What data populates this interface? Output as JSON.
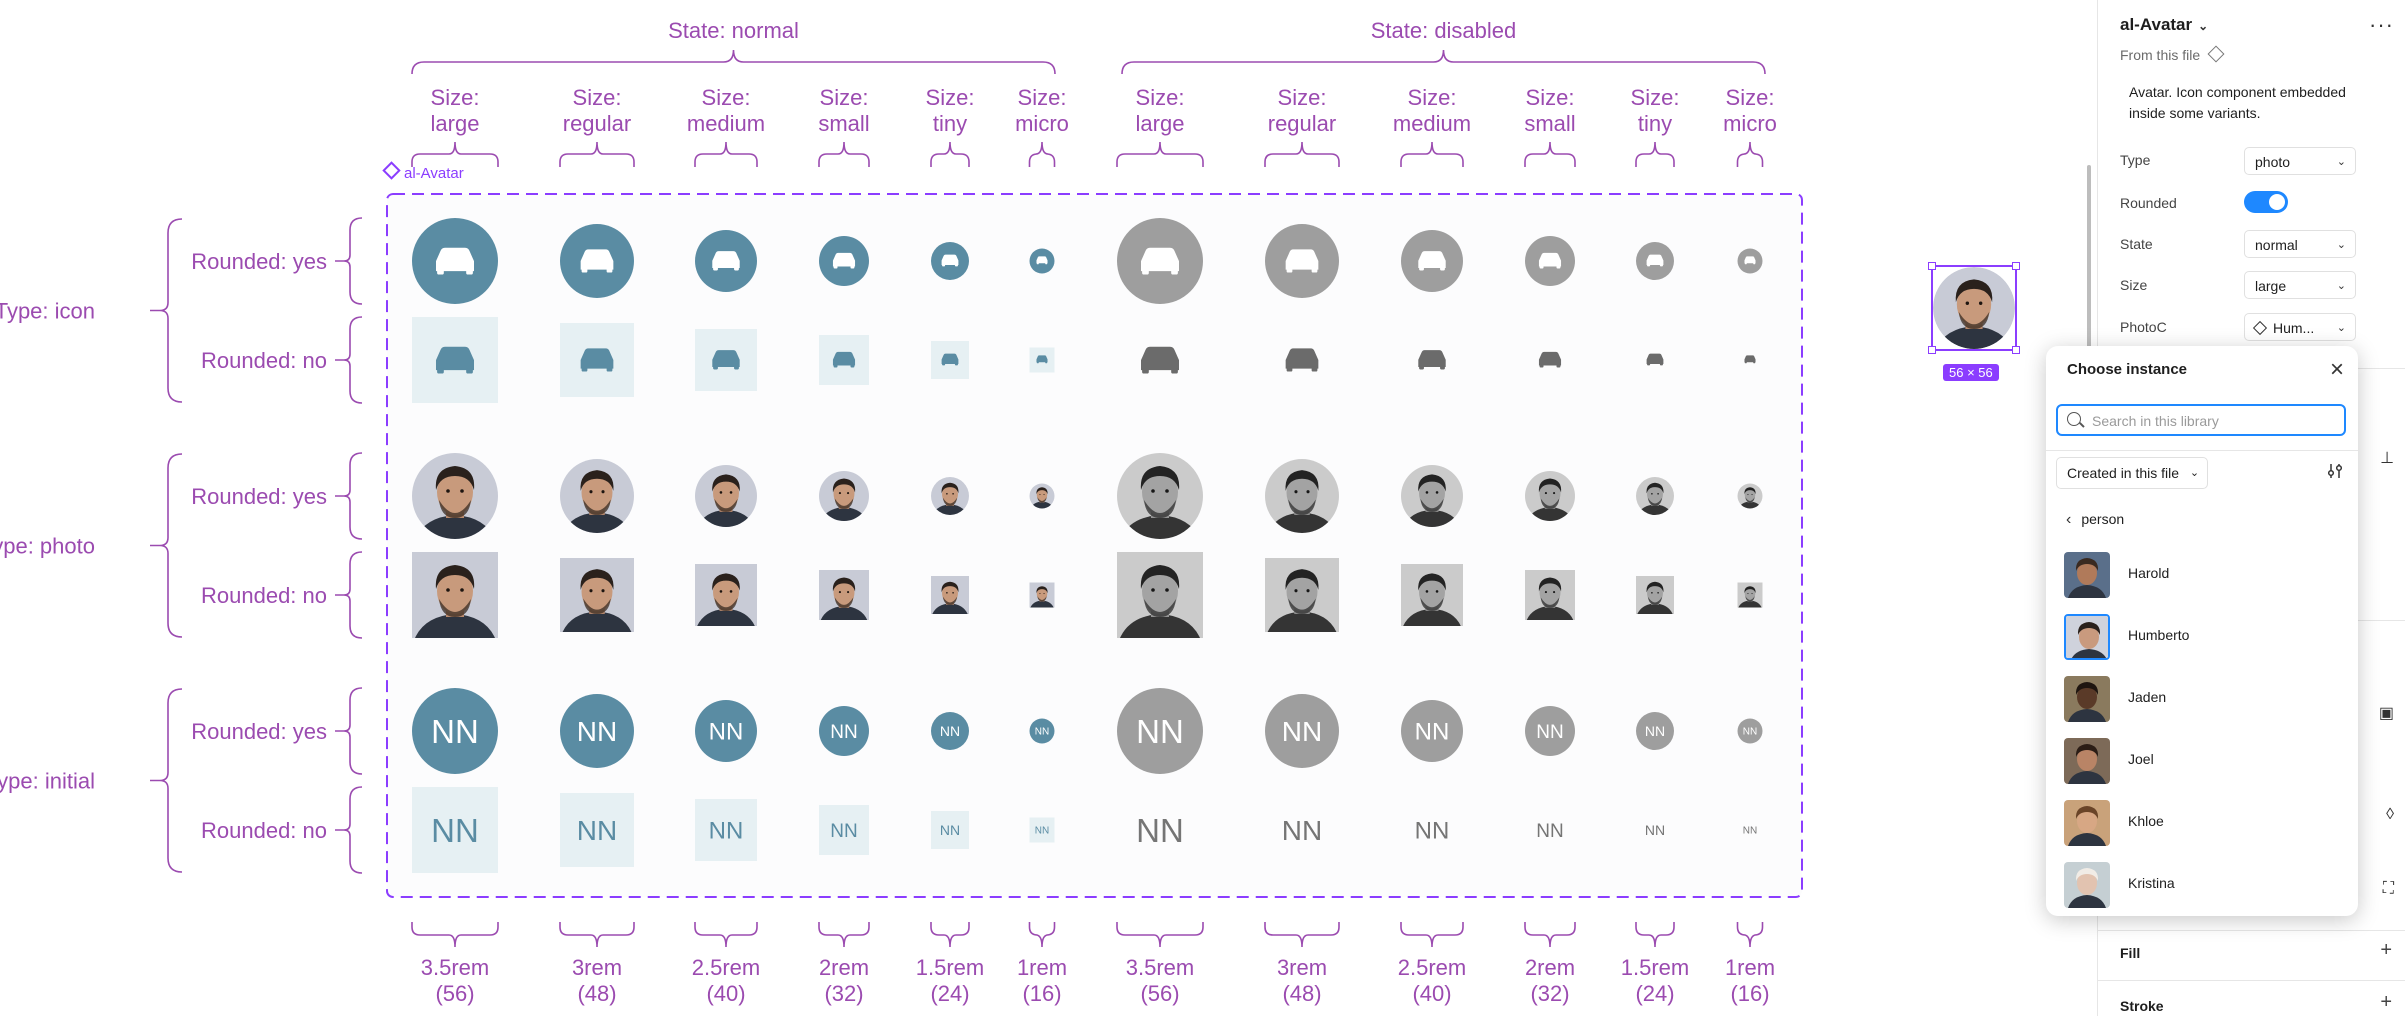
{
  "canvas": {
    "component_label": "al-Avatar",
    "state_headers": [
      "State: normal",
      "State: disabled"
    ],
    "size_headers": [
      [
        "Size:",
        "large"
      ],
      [
        "Size:",
        "regular"
      ],
      [
        "Size:",
        "medium"
      ],
      [
        "Size:",
        "small"
      ],
      [
        "Size:",
        "tiny"
      ],
      [
        "Size:",
        "micro"
      ]
    ],
    "size_footers": [
      [
        "3.5rem",
        "(56)"
      ],
      [
        "3rem",
        "(48)"
      ],
      [
        "2.5rem",
        "(40)"
      ],
      [
        "2rem",
        "(32)"
      ],
      [
        "1.5rem",
        "(24)"
      ],
      [
        "1rem",
        "(16)"
      ]
    ],
    "type_groups": [
      {
        "label": "Type: icon",
        "rows": [
          "Rounded: yes",
          "Rounded: no"
        ],
        "kind": "icon"
      },
      {
        "label": "Type: photo",
        "rows": [
          "Rounded: yes",
          "Rounded: no"
        ],
        "kind": "photo"
      },
      {
        "label": "Type: initial",
        "rows": [
          "Rounded: yes",
          "Rounded: no"
        ],
        "kind": "initial"
      }
    ],
    "initials": "NN",
    "icon_name": "car-icon",
    "selection_size": "56 × 56"
  },
  "colors": {
    "annotation": "#9b4bb0",
    "frame": "#8b3dff",
    "normal_fill": "#5a8ca3",
    "normal_square": "#e6f0f3",
    "disabled_fill": "#9e9e9e",
    "disabled_text": "#757575",
    "accent": "#1e88ff"
  },
  "panel": {
    "title": "al-Avatar",
    "from_file": "From this file",
    "description": "Avatar. Icon component embedded inside some variants.",
    "props": [
      {
        "label": "Type",
        "value": "photo"
      },
      {
        "label": "Rounded",
        "value": "on"
      },
      {
        "label": "State",
        "value": "normal"
      },
      {
        "label": "Size",
        "value": "large"
      },
      {
        "label": "PhotoC",
        "value": "Hum..."
      }
    ],
    "fill_label": "Fill",
    "stroke_label": "Stroke"
  },
  "popover": {
    "title": "Choose instance",
    "search_placeholder": "Search in this library",
    "library_filter": "Created in this file",
    "breadcrumb": "person",
    "instances": [
      {
        "name": "Harold",
        "skin": "#b07a5a",
        "hair": "#3a2a20",
        "bg": "#5a6f8a"
      },
      {
        "name": "Humberto",
        "skin": "#c99a7e",
        "hair": "#2a211c",
        "bg": "#cfd2dc",
        "selected": true
      },
      {
        "name": "Jaden",
        "skin": "#5a3a28",
        "hair": "#1e1510",
        "bg": "#8a7a5e"
      },
      {
        "name": "Joel",
        "skin": "#b98466",
        "hair": "#2b1d16",
        "bg": "#7d6a58"
      },
      {
        "name": "Khloe",
        "skin": "#d7a784",
        "hair": "#6a4428",
        "bg": "#c9a27a"
      },
      {
        "name": "Kristina",
        "skin": "#e2c3b0",
        "hair": "#f1ece6",
        "bg": "#c5cfd3"
      }
    ]
  }
}
